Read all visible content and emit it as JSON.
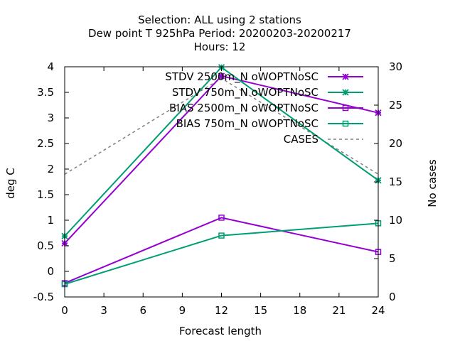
{
  "chart_data": {
    "type": "line",
    "title_lines": [
      "Selection: ALL using     2 stations",
      "Dew point T 925hPa   Period: 20200203-20200217",
      "Hours:  12"
    ],
    "xlabel": "Forecast length",
    "ylabel": "deg C",
    "y2label": "No cases",
    "xlim": [
      0,
      24
    ],
    "ylim": [
      -0.5,
      4
    ],
    "y2lim": [
      0,
      30
    ],
    "x_ticks": [
      0,
      3,
      6,
      9,
      12,
      15,
      18,
      21,
      24
    ],
    "y_ticks": [
      "-0.5",
      "0",
      "0.5",
      "1",
      "1.5",
      "2",
      "2.5",
      "3",
      "3.5",
      "4"
    ],
    "y2_ticks": [
      0,
      5,
      10,
      15,
      20,
      25,
      30
    ],
    "grid": false,
    "legend_position": "top-right",
    "x": [
      0,
      12,
      24
    ],
    "series": [
      {
        "name": "STDV 2500m_N oWOPTNoSC",
        "axis": "y",
        "values": [
          0.55,
          3.82,
          3.1
        ],
        "color": "#9400d3",
        "marker": "x-star",
        "dash": false
      },
      {
        "name": "STDV 750m_N oWOPTNoSC",
        "axis": "y",
        "values": [
          0.69,
          3.99,
          1.78
        ],
        "color": "#009e73",
        "marker": "x-star",
        "dash": false
      },
      {
        "name": "BIAS 2500m_N oWOPTNoSC",
        "axis": "y",
        "values": [
          -0.23,
          1.05,
          0.38
        ],
        "color": "#9400d3",
        "marker": "square",
        "dash": false
      },
      {
        "name": "BIAS 750m_N oWOPTNoSC",
        "axis": "y",
        "values": [
          -0.25,
          0.7,
          0.94
        ],
        "color": "#009e73",
        "marker": "square",
        "dash": false
      },
      {
        "name": "CASES",
        "axis": "y2",
        "values": [
          16,
          28.5,
          16
        ],
        "color": "#808080",
        "marker": "none",
        "dash": true
      }
    ]
  }
}
